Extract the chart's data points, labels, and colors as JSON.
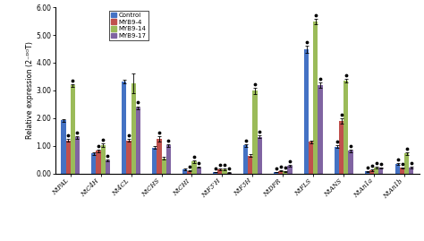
{
  "categories": [
    "NtPAL",
    "NtC4H",
    "Nt4CL",
    "NtCHS",
    "NtCHI",
    "NtF3’H",
    "NtF3H",
    "NtDFR",
    "NtFLS",
    "NtANS",
    "NtAn1a",
    "NtAn1b"
  ],
  "series": {
    "Control": [
      1.92,
      0.72,
      3.32,
      0.93,
      0.15,
      0.05,
      1.02,
      0.05,
      4.48,
      0.97,
      0.08,
      0.35
    ],
    "MYB9-4": [
      1.2,
      0.82,
      1.2,
      1.25,
      0.1,
      0.15,
      0.65,
      0.1,
      1.15,
      1.9,
      0.12,
      0.2
    ],
    "MYB9-14": [
      3.18,
      1.02,
      3.25,
      0.55,
      0.43,
      0.15,
      2.98,
      0.08,
      5.48,
      3.35,
      0.22,
      0.72
    ],
    "MYB9-17": [
      1.3,
      0.48,
      2.38,
      1.02,
      0.23,
      0.03,
      1.33,
      0.28,
      3.2,
      0.82,
      0.2,
      0.22
    ]
  },
  "errors": {
    "Control": [
      0.05,
      0.04,
      0.08,
      0.05,
      0.02,
      0.01,
      0.05,
      0.01,
      0.12,
      0.05,
      0.01,
      0.04
    ],
    "MYB9-4": [
      0.05,
      0.04,
      0.05,
      0.1,
      0.02,
      0.03,
      0.05,
      0.02,
      0.05,
      0.1,
      0.02,
      0.03
    ],
    "MYB9-14": [
      0.05,
      0.06,
      0.35,
      0.05,
      0.05,
      0.03,
      0.12,
      0.02,
      0.1,
      0.06,
      0.03,
      0.06
    ],
    "MYB9-17": [
      0.05,
      0.04,
      0.05,
      0.05,
      0.03,
      0.01,
      0.05,
      0.03,
      0.1,
      0.05,
      0.03,
      0.03
    ]
  },
  "colors": {
    "Control": "#4472C4",
    "MYB9-4": "#C0504D",
    "MYB9-14": "#9BBB59",
    "MYB9-17": "#8064A2"
  },
  "series_order": [
    "Control",
    "MYB9-4",
    "MYB9-14",
    "MYB9-17"
  ],
  "ylabel": "Relative expression (2⁻ᴰᴼT)",
  "ylim": [
    0,
    6.0
  ],
  "yticks": [
    0.0,
    1.0,
    2.0,
    3.0,
    4.0,
    5.0,
    6.0
  ],
  "star_positions": {
    "NtPAL": [
      2,
      1,
      3
    ],
    "NtC4H": [
      1,
      2,
      3
    ],
    "Nt4CL": [
      1,
      3
    ],
    "NtCHS": [
      1,
      3
    ],
    "NtCHI": [
      1,
      2,
      3
    ],
    "NtF3’H": [
      0,
      1,
      2,
      3
    ],
    "NtF3H": [
      0,
      2,
      3
    ],
    "NtDFR": [
      0,
      1,
      2,
      3
    ],
    "NtFLS": [
      2,
      0,
      3
    ],
    "NtANS": [
      0,
      1,
      2,
      3
    ],
    "NtAn1a": [
      0,
      1,
      2,
      3
    ],
    "NtAn1b": [
      0,
      1,
      2,
      3
    ]
  }
}
